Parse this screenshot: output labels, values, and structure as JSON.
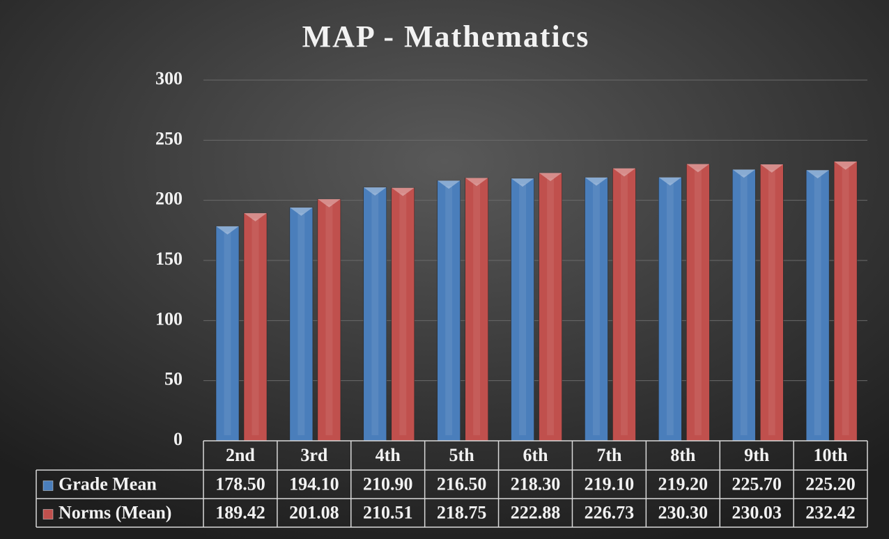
{
  "chart_data": {
    "type": "bar",
    "title": "MAP - Mathematics",
    "categories": [
      "2nd",
      "3rd",
      "4th",
      "5th",
      "6th",
      "7th",
      "8th",
      "9th",
      "10th"
    ],
    "series": [
      {
        "name": "Grade Mean",
        "color": "#4a7ebb",
        "values": [
          178.5,
          194.1,
          210.9,
          216.5,
          218.3,
          219.1,
          219.2,
          225.7,
          225.2
        ],
        "value_labels": [
          "178.50",
          "194.10",
          "210.90",
          "216.50",
          "218.30",
          "219.10",
          "219.20",
          "225.70",
          "225.20"
        ]
      },
      {
        "name": "Norms (Mean)",
        "color": "#c0504d",
        "values": [
          189.42,
          201.08,
          210.51,
          218.75,
          222.88,
          226.73,
          230.3,
          230.03,
          232.42
        ],
        "value_labels": [
          "189.42",
          "201.08",
          "210.51",
          "218.75",
          "222.88",
          "226.73",
          "230.30",
          "230.03",
          "232.42"
        ]
      }
    ],
    "ylim": [
      0,
      300
    ],
    "yticks": [
      0,
      50,
      100,
      150,
      200,
      250,
      300
    ],
    "grid": true
  }
}
